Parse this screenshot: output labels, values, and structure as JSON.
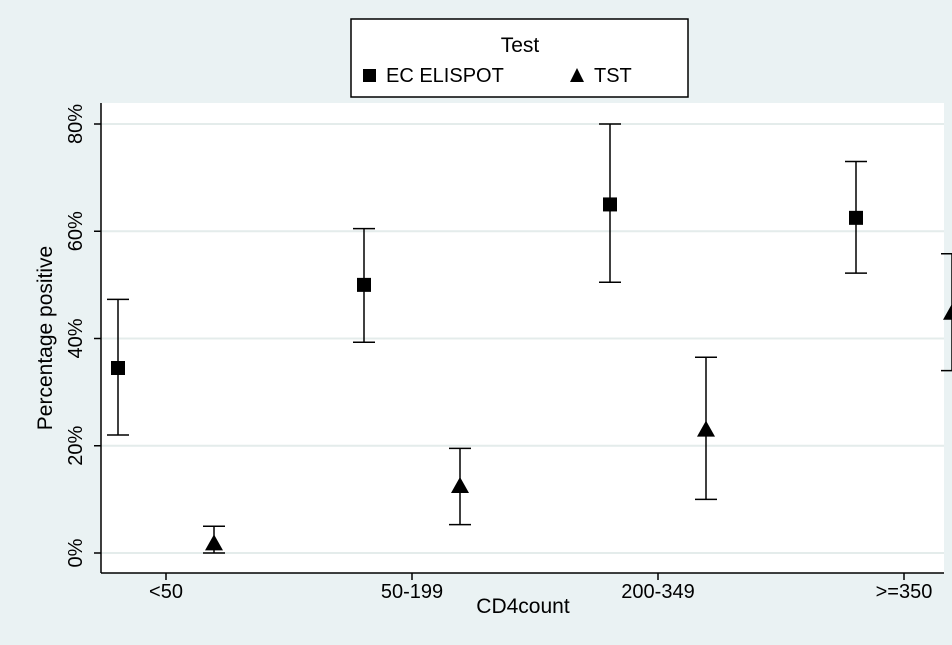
{
  "chart_data": {
    "type": "scatter",
    "title": "",
    "xlabel": "CD4count",
    "ylabel": "Percentage positive",
    "categories": [
      "<50",
      "50-199",
      "200-349",
      ">=350"
    ],
    "ylim": [
      0,
      80
    ],
    "yticks": [
      0,
      20,
      40,
      60,
      80
    ],
    "ytick_labels": [
      "0%",
      "20%",
      "40%",
      "60%",
      "80%"
    ],
    "grid": true,
    "legend": {
      "title": "Test",
      "position": "top-center"
    },
    "series": [
      {
        "name": "EC ELISPOT",
        "marker": "square",
        "values": [
          34.5,
          50,
          65,
          62.5
        ],
        "lower": [
          22,
          39.3,
          50.5,
          52.2
        ],
        "upper": [
          47.3,
          60.5,
          80,
          73
        ]
      },
      {
        "name": "TST",
        "marker": "triangle",
        "values": [
          1.8,
          12.5,
          23,
          44.8
        ],
        "lower": [
          0,
          5.3,
          10,
          34
        ],
        "upper": [
          5,
          19.5,
          36.5,
          55.8
        ]
      }
    ],
    "colors": {
      "background": "#eaf2f3",
      "plot": "#ffffff",
      "marker": "#000000",
      "grid": "#e4eceb"
    }
  }
}
